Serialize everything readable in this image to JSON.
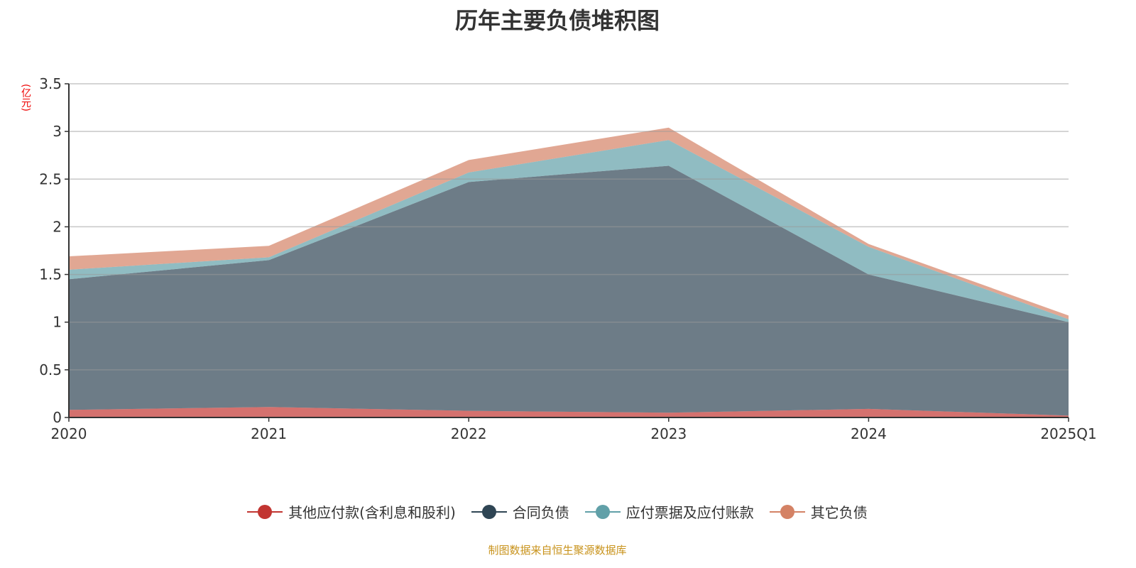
{
  "chart_data": {
    "type": "area",
    "stacked": true,
    "title": "历年主要负债堆积图",
    "ylabel": "(亿元)",
    "xlabel": "",
    "categories": [
      "2020",
      "2021",
      "2022",
      "2023",
      "2024",
      "2025Q1"
    ],
    "ylim": [
      0,
      3.5
    ],
    "yticks": [
      "0",
      "0.5",
      "1",
      "1.5",
      "2",
      "2.5",
      "3",
      "3.5"
    ],
    "grid": true,
    "legend_position": "bottom",
    "series": [
      {
        "name": "其他应付款(含利息和股利)",
        "color": "#c23531",
        "values": [
          0.08,
          0.11,
          0.07,
          0.05,
          0.09,
          0.02
        ]
      },
      {
        "name": "合同负债",
        "color": "#2f4554",
        "values": [
          1.37,
          1.54,
          2.4,
          2.59,
          1.41,
          0.98
        ]
      },
      {
        "name": "应付票据及应付账款",
        "color": "#61a0a8",
        "values": [
          0.1,
          0.03,
          0.1,
          0.27,
          0.29,
          0.03
        ]
      },
      {
        "name": "其它负债",
        "color": "#d48265",
        "values": [
          0.14,
          0.12,
          0.13,
          0.13,
          0.03,
          0.04
        ]
      }
    ]
  },
  "source": "制图数据来自恒生聚源数据库"
}
